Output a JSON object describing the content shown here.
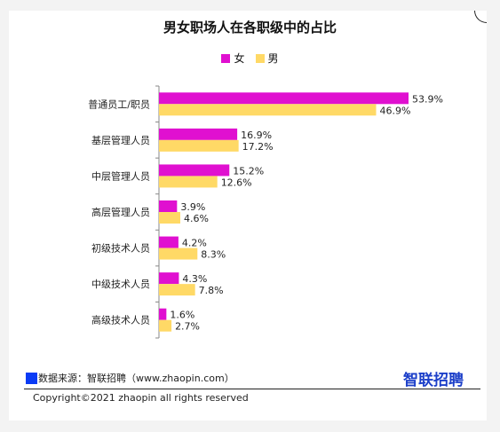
{
  "chart_data": {
    "type": "bar",
    "orientation": "horizontal",
    "title": "男女职场人在各职级中的占比",
    "categories": [
      "普通员工/职员",
      "基层管理人员",
      "中层管理人员",
      "高层管理人员",
      "初级技术人员",
      "中级技术人员",
      "高级技术人员"
    ],
    "series": [
      {
        "name": "女",
        "color": "#e010d0",
        "values": [
          53.9,
          16.9,
          15.2,
          3.9,
          4.2,
          4.3,
          1.6
        ]
      },
      {
        "name": "男",
        "color": "#ffd966",
        "values": [
          46.9,
          17.2,
          12.6,
          4.6,
          8.3,
          7.8,
          2.7
        ]
      }
    ],
    "value_suffix": "%",
    "xlim": [
      0,
      60
    ],
    "legend_position": "top-center",
    "grid": false
  },
  "source": "数据来源：智联招聘（www.zhaopin.com）",
  "brand": "智联招聘",
  "copyright": "Copyright©2021 zhaopin all rights reserved"
}
